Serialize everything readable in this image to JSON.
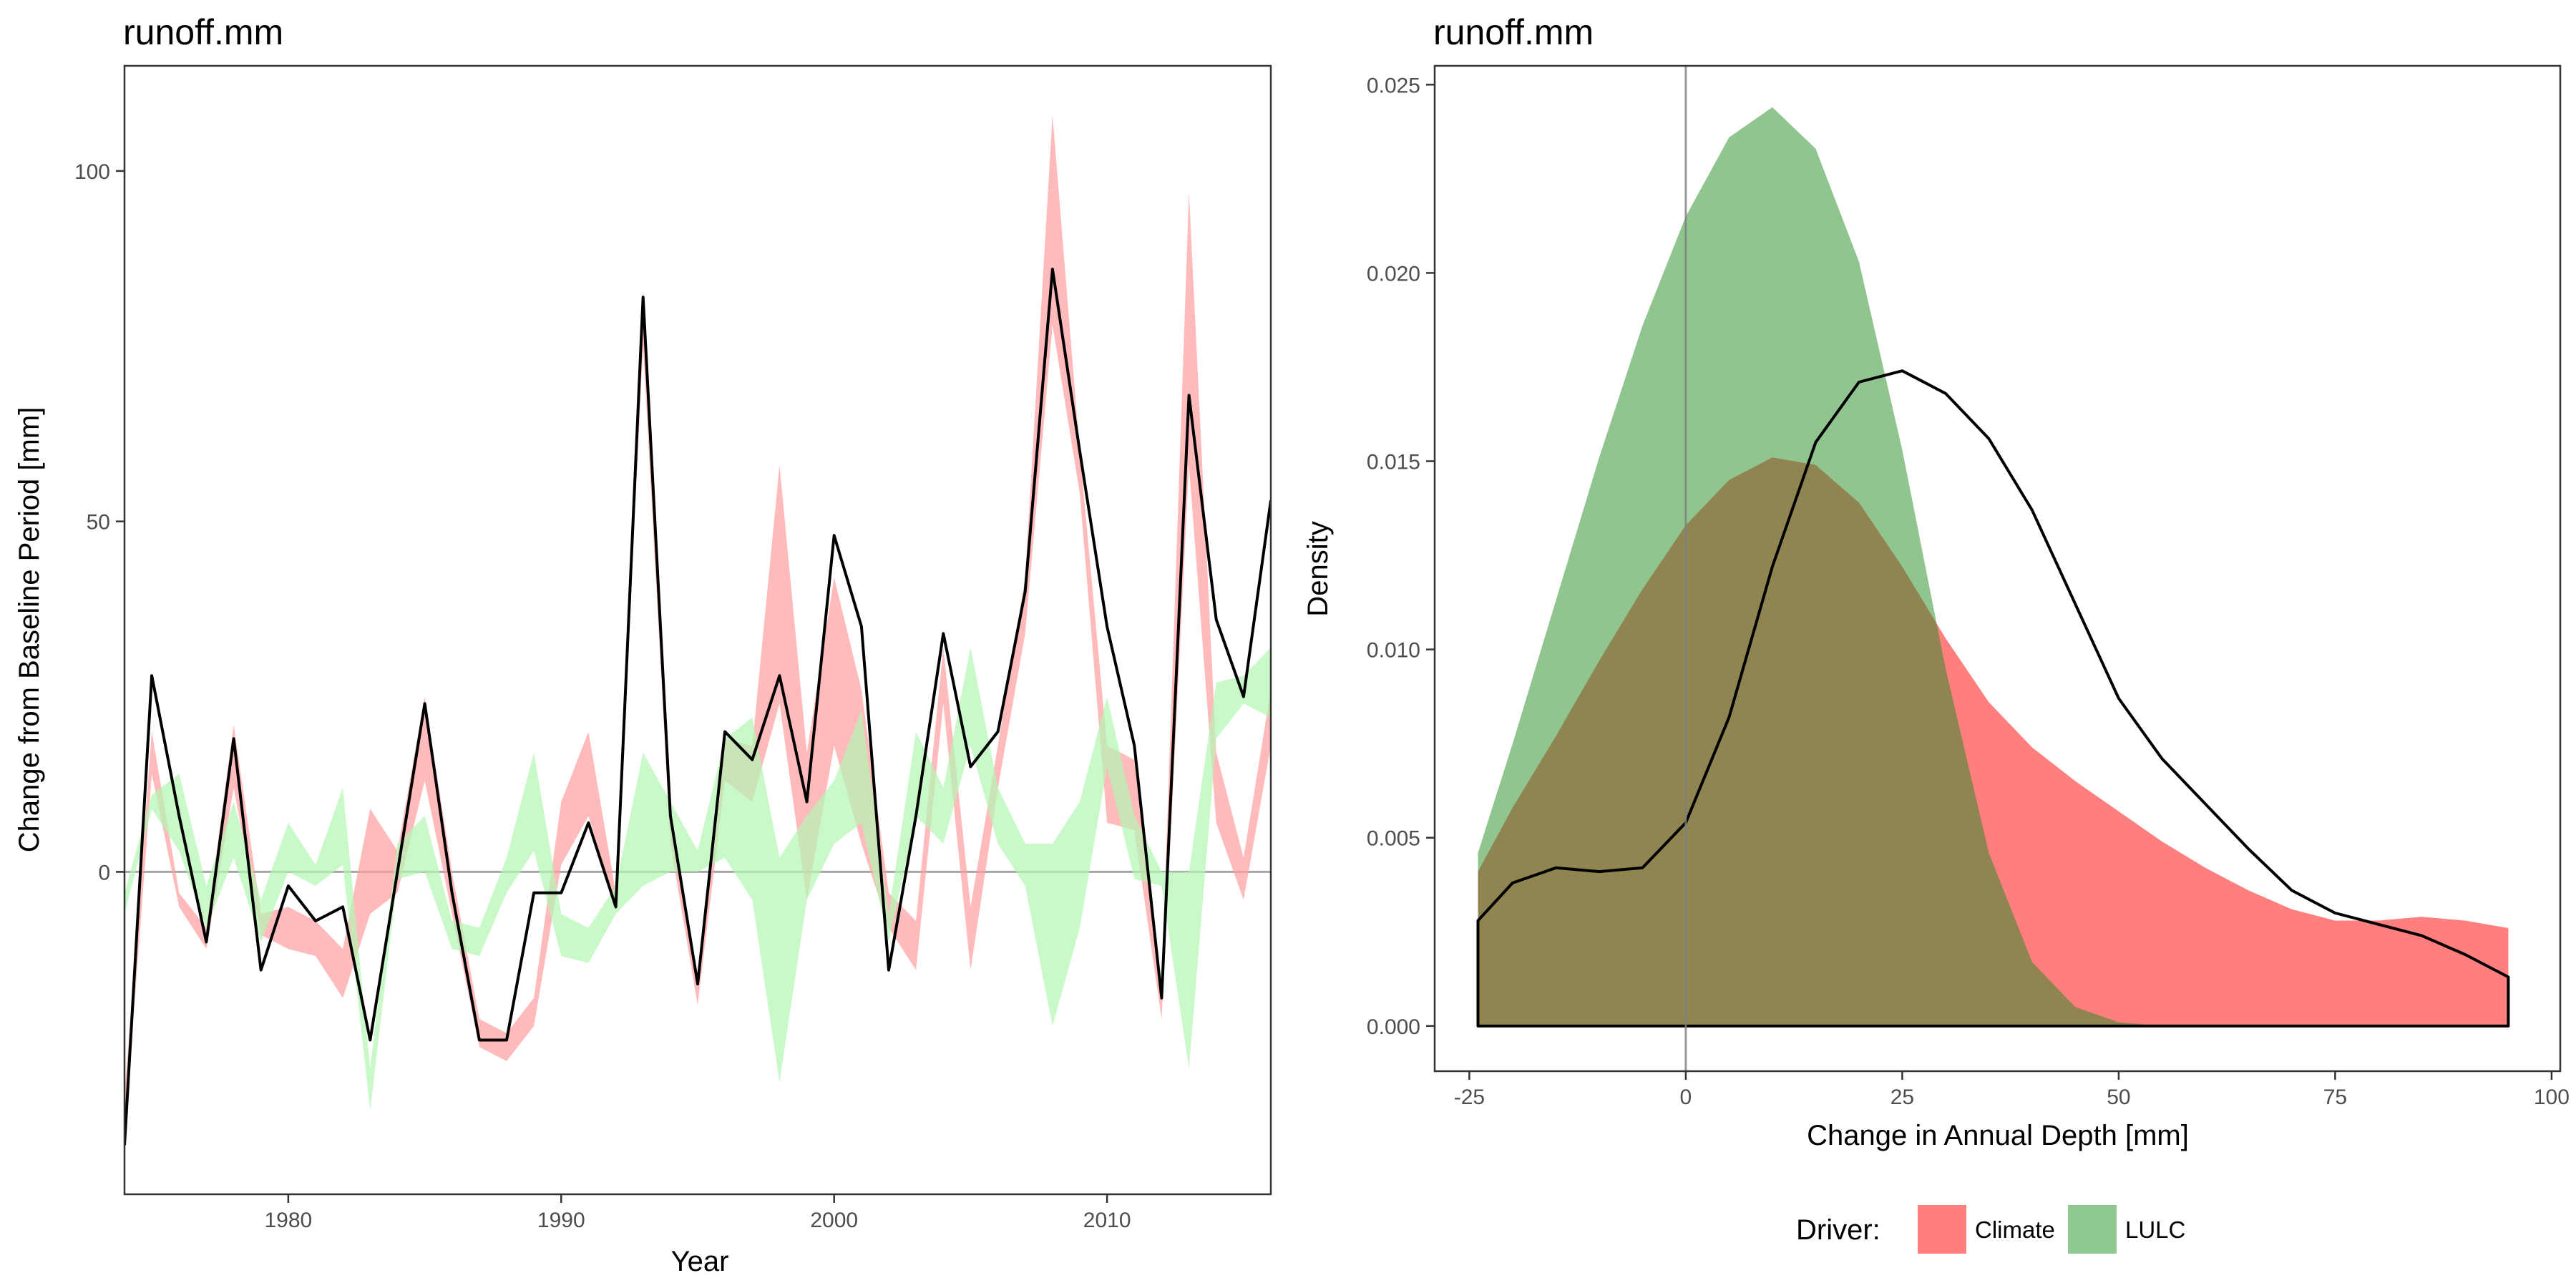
{
  "chart_data": [
    {
      "type": "line",
      "title": "runoff.mm",
      "xlabel": "Year",
      "ylabel": "Change from Baseline Period [mm]",
      "xlim": [
        1974,
        2016
      ],
      "ylim": [
        -46,
        115
      ],
      "x_ticks": [
        1980,
        1990,
        2000,
        2010
      ],
      "y_ticks": [
        0,
        50,
        100
      ],
      "grid": false,
      "reference_line_y": 0,
      "series": [
        {
          "name": "Climate",
          "kind": "ribbon",
          "color": "#ff9e9e",
          "x": [
            1974,
            1975,
            1976,
            1977,
            1978,
            1979,
            1980,
            1981,
            1982,
            1983,
            1984,
            1985,
            1986,
            1987,
            1988,
            1989,
            1990,
            1991,
            1992,
            1993,
            1994,
            1995,
            1996,
            1997,
            1998,
            1999,
            2000,
            2001,
            2002,
            2003,
            2004,
            2005,
            2006,
            2007,
            2008,
            2009,
            2010,
            2011,
            2012,
            2013,
            2014,
            2015,
            2016
          ],
          "lower": [
            -38,
            14,
            -5,
            -11,
            12,
            -9,
            -11,
            -12,
            -18,
            -6,
            -3,
            13,
            -6,
            -25,
            -27,
            -22,
            1,
            8,
            -5,
            75,
            4,
            -19,
            13,
            10,
            24,
            -4,
            18,
            4,
            -8,
            -14,
            24,
            -14,
            12,
            34,
            78,
            54,
            7,
            6,
            -21,
            58,
            7,
            -4,
            18
          ],
          "upper": [
            -32,
            20,
            -3,
            -8,
            21,
            -6,
            -5,
            -7,
            -11,
            9,
            3,
            25,
            0,
            -21,
            -23,
            -18,
            10,
            20,
            -3,
            83,
            9,
            -15,
            19,
            18,
            58,
            17,
            42,
            26,
            -3,
            -7,
            32,
            -5,
            18,
            42,
            108,
            60,
            18,
            16,
            -16,
            97,
            17,
            2,
            26
          ]
        },
        {
          "name": "LULC",
          "kind": "ribbon",
          "color": "#b2f7b2",
          "x": [
            1974,
            1975,
            1976,
            1977,
            1978,
            1979,
            1980,
            1981,
            1982,
            1983,
            1984,
            1985,
            1986,
            1987,
            1988,
            1989,
            1990,
            1991,
            1992,
            1993,
            1994,
            1995,
            1996,
            1997,
            1998,
            1999,
            2000,
            2001,
            2002,
            2003,
            2004,
            2005,
            2006,
            2007,
            2008,
            2009,
            2010,
            2011,
            2012,
            2013,
            2014,
            2015,
            2016
          ],
          "lower": [
            -6,
            9,
            3,
            -8,
            2,
            -10,
            0,
            -2,
            1,
            -34,
            -1,
            0,
            -11,
            -12,
            -3,
            3,
            -12,
            -13,
            -6,
            -2,
            0,
            0,
            2,
            -4,
            -30,
            -4,
            4,
            7,
            -10,
            8,
            4,
            18,
            4,
            -2,
            -22,
            -8,
            15,
            -1,
            -2,
            -28,
            19,
            24,
            22
          ],
          "upper": [
            -3,
            11,
            14,
            -2,
            10,
            -4,
            7,
            1,
            12,
            -28,
            4,
            8,
            -7,
            -8,
            2,
            17,
            -6,
            -8,
            -2,
            17,
            10,
            3,
            19,
            22,
            2,
            8,
            13,
            23,
            -6,
            20,
            12,
            32,
            12,
            4,
            4,
            10,
            25,
            8,
            0,
            0,
            27,
            28,
            32
          ]
        },
        {
          "name": "",
          "kind": "line",
          "color": "#000000",
          "x": [
            1974,
            1975,
            1976,
            1977,
            1978,
            1979,
            1980,
            1981,
            1982,
            1983,
            1984,
            1985,
            1986,
            1987,
            1988,
            1989,
            1990,
            1991,
            1992,
            1993,
            1994,
            1995,
            1996,
            1997,
            1998,
            1999,
            2000,
            2001,
            2002,
            2003,
            2004,
            2005,
            2006,
            2007,
            2008,
            2009,
            2010,
            2011,
            2012,
            2013,
            2014,
            2015,
            2016
          ],
          "y": [
            -39,
            28,
            8,
            -10,
            19,
            -14,
            -2,
            -7,
            -5,
            -24,
            0,
            24,
            -3,
            -24,
            -24,
            -3,
            -3,
            7,
            -5,
            82,
            8,
            -16,
            20,
            16,
            28,
            10,
            48,
            35,
            -14,
            8,
            34,
            15,
            20,
            40,
            86,
            60,
            35,
            18,
            -18,
            68,
            36,
            25,
            53
          ]
        }
      ]
    },
    {
      "type": "area",
      "title": "runoff.mm",
      "xlabel": "Change in Annual Depth [mm]",
      "ylabel": "Density",
      "xlim": [
        -29,
        101
      ],
      "ylim": [
        -0.0012,
        0.0255
      ],
      "x_ticks": [
        -25,
        0,
        25,
        50,
        75,
        100
      ],
      "x_tick_labels": [
        "-25",
        "0",
        "25",
        "50",
        "75",
        "100"
      ],
      "y_ticks": [
        0.0,
        0.005,
        0.01,
        0.015,
        0.02,
        0.025
      ],
      "y_tick_labels": [
        "0.000",
        "0.005",
        "0.010",
        "0.015",
        "0.020",
        "0.025"
      ],
      "grid": false,
      "reference_line_x": 0,
      "series": [
        {
          "name": "Climate",
          "kind": "density_fill",
          "color": "#ff0000",
          "opacity": 0.5,
          "x": [
            -24,
            -20,
            -15,
            -10,
            -5,
            0,
            5,
            10,
            15,
            20,
            25,
            30,
            35,
            40,
            45,
            50,
            55,
            60,
            65,
            70,
            75,
            80,
            85,
            90,
            95
          ],
          "y": [
            0.0041,
            0.0058,
            0.0077,
            0.0097,
            0.0116,
            0.0133,
            0.0145,
            0.0151,
            0.0149,
            0.0139,
            0.0122,
            0.0103,
            0.0086,
            0.0074,
            0.0065,
            0.0057,
            0.0049,
            0.0042,
            0.0036,
            0.0031,
            0.0028,
            0.0028,
            0.0029,
            0.0028,
            0.0026
          ]
        },
        {
          "name": "LULC",
          "kind": "density_fill",
          "color": "#228b22",
          "opacity": 0.5,
          "x": [
            -24,
            -20,
            -15,
            -10,
            -5,
            0,
            5,
            10,
            15,
            20,
            25,
            30,
            35,
            40,
            45,
            50,
            55,
            60,
            65,
            70,
            75,
            80,
            85,
            90,
            95
          ],
          "y": [
            0.0046,
            0.0075,
            0.0113,
            0.0151,
            0.0186,
            0.0215,
            0.0236,
            0.0244,
            0.0233,
            0.0203,
            0.0153,
            0.0095,
            0.0046,
            0.0017,
            0.0005,
            0.0001,
            0.0,
            0.0,
            0.0,
            0.0,
            0.0,
            0.0,
            0.0,
            0.0,
            0.0
          ]
        },
        {
          "name": "",
          "kind": "density_line",
          "color": "#000000",
          "x": [
            -24,
            -20,
            -15,
            -10,
            -5,
            0,
            5,
            10,
            15,
            20,
            25,
            30,
            35,
            40,
            45,
            50,
            55,
            60,
            65,
            70,
            75,
            80,
            85,
            90,
            95
          ],
          "y": [
            0.0028,
            0.0038,
            0.0042,
            0.0041,
            0.0042,
            0.0054,
            0.0082,
            0.0122,
            0.0155,
            0.0171,
            0.0174,
            0.0168,
            0.0156,
            0.0137,
            0.0112,
            0.0087,
            0.0071,
            0.0059,
            0.0047,
            0.0036,
            0.003,
            0.0027,
            0.0024,
            0.0019,
            0.0013
          ]
        }
      ]
    }
  ],
  "legend": {
    "title": "Driver:",
    "position": "bottom",
    "items": [
      {
        "label": "Climate",
        "color": "#ff7f7f"
      },
      {
        "label": "LULC",
        "color": "#8fc98f"
      }
    ]
  }
}
